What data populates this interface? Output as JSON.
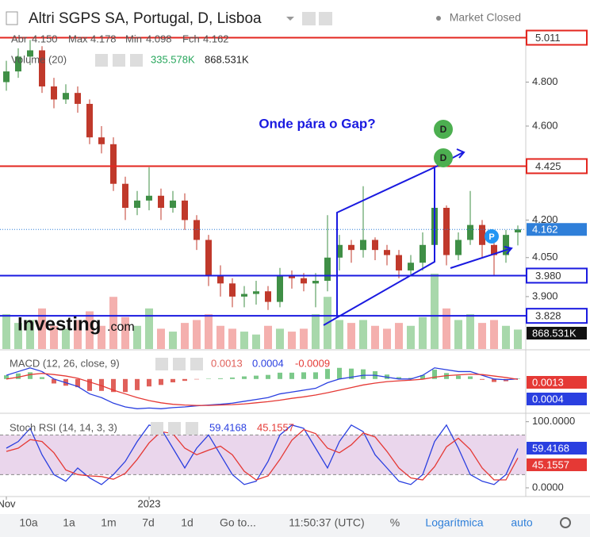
{
  "header": {
    "title": "Altri SGPS SA, Portugal, D, Lisboa",
    "status": "Market Closed"
  },
  "toolbar": {
    "ranges": [
      "10a",
      "1a",
      "1m",
      "7d",
      "1d"
    ],
    "goto": "Go to...",
    "time": "11:50:37 (UTC)",
    "percent": "%",
    "log": "Logarítmica",
    "auto": "auto"
  },
  "logo": {
    "brand": "Investing",
    "suffix": ".com"
  },
  "chart_data": [
    {
      "type": "candlestick",
      "categories": [
        "Nov",
        null,
        null,
        null,
        null,
        null,
        null,
        null,
        null,
        null,
        null,
        null,
        "2023",
        null,
        null,
        null,
        null,
        null,
        null,
        null,
        null,
        null,
        null,
        null,
        null,
        null,
        null,
        null,
        null,
        null,
        null,
        null,
        null,
        null,
        null,
        null,
        null,
        null,
        null,
        null,
        null,
        null,
        null,
        null
      ],
      "open": [
        4.8,
        4.85,
        4.92,
        4.95,
        4.78,
        4.72,
        4.75,
        4.7,
        4.55,
        4.52,
        4.35,
        4.25,
        4.28,
        4.3,
        4.25,
        4.28,
        4.2,
        4.12,
        3.98,
        3.95,
        3.9,
        3.91,
        3.92,
        3.88,
        3.98,
        3.97,
        3.95,
        3.96,
        4.05,
        4.1,
        4.08,
        4.12,
        4.08,
        4.06,
        4.0,
        4.03,
        4.1,
        4.25,
        4.06,
        4.12,
        4.18,
        4.1,
        4.06,
        4.15
      ],
      "high": [
        4.9,
        4.96,
        5.0,
        4.97,
        4.82,
        4.79,
        4.78,
        4.72,
        4.6,
        4.55,
        4.38,
        4.32,
        4.42,
        4.33,
        4.32,
        4.31,
        4.22,
        4.14,
        4.02,
        3.97,
        3.94,
        3.96,
        3.94,
        4.01,
        4.0,
        3.99,
        3.99,
        4.22,
        4.14,
        4.12,
        4.34,
        4.13,
        4.1,
        4.08,
        4.06,
        4.15,
        4.38,
        4.26,
        4.15,
        4.32,
        4.2,
        4.14,
        4.16,
        4.178
      ],
      "low": [
        4.76,
        4.82,
        4.88,
        4.75,
        4.68,
        4.7,
        4.66,
        4.52,
        4.48,
        4.32,
        4.2,
        4.22,
        4.24,
        4.2,
        4.23,
        4.16,
        4.08,
        3.94,
        3.9,
        3.86,
        3.86,
        3.87,
        3.85,
        3.86,
        3.93,
        3.92,
        3.86,
        3.92,
        4.0,
        4.03,
        4.05,
        4.04,
        4.02,
        3.97,
        3.98,
        4.0,
        4.08,
        4.02,
        4.04,
        4.1,
        4.05,
        3.98,
        4.03,
        4.098
      ],
      "close": [
        4.85,
        4.92,
        4.95,
        4.78,
        4.72,
        4.75,
        4.7,
        4.55,
        4.52,
        4.35,
        4.25,
        4.28,
        4.3,
        4.25,
        4.28,
        4.2,
        4.12,
        3.98,
        3.95,
        3.9,
        3.91,
        3.92,
        3.88,
        3.98,
        3.97,
        3.95,
        3.96,
        4.05,
        4.1,
        4.08,
        4.12,
        4.08,
        4.06,
        4.0,
        4.03,
        4.1,
        4.25,
        4.06,
        4.12,
        4.18,
        4.1,
        4.06,
        4.14,
        4.162
      ],
      "up_color": "#3f8f46",
      "down_color": "#c0392b",
      "ohlc_legend": [
        {
          "label": "Abr",
          "value": "4.150"
        },
        {
          "label": "Max",
          "value": "4.178"
        },
        {
          "label": "Min",
          "value": "4.098"
        },
        {
          "label": "Fch",
          "value": "4.162"
        }
      ],
      "volume": {
        "name": "Volume (20)",
        "last": "335.578K",
        "ma": "868.531K",
        "up_color": "#a8d8ab",
        "down_color": "#f4b0ae",
        "values": [
          600,
          450,
          500,
          700,
          400,
          350,
          500,
          650,
          400,
          900,
          550,
          400,
          700,
          350,
          300,
          450,
          500,
          600,
          400,
          350,
          300,
          250,
          400,
          350,
          300,
          350,
          600,
          900,
          500,
          450,
          500,
          400,
          350,
          450,
          400,
          550,
          1300,
          700,
          500,
          600,
          450,
          500,
          400,
          335.578
        ]
      },
      "ylim": [
        3.707,
        5.04
      ],
      "log_scale": true,
      "grid": false,
      "yticks": [
        {
          "value": 3.9,
          "label": "3.900"
        },
        {
          "value": 4.05,
          "label": "4.050"
        },
        {
          "value": 4.2,
          "label": "4.200"
        },
        {
          "value": 4.6,
          "label": "4.600"
        },
        {
          "value": 4.8,
          "label": "4.800"
        }
      ],
      "hlines": [
        {
          "value": 5.011,
          "label": "5.011",
          "color": "#e3261f"
        },
        {
          "value": 4.425,
          "label": "4.425",
          "color": "#e3261f"
        },
        {
          "value": 3.98,
          "label": "3.980",
          "color": "#1a1ae0"
        },
        {
          "value": 3.828,
          "label": "3.828",
          "color": "#1a1ae0"
        }
      ],
      "last_color": "#2f7fd9",
      "annotation": "Onde pára o Gap?",
      "markers": [
        "D",
        "D",
        "P"
      ]
    },
    {
      "type": "macd",
      "title": "MACD (12, 26, close, 9)",
      "ylim": [
        -0.09,
        0.07
      ],
      "series": [
        {
          "name": "histogram",
          "color": "#e0605a",
          "values": [
            0.01,
            0.015,
            0.018,
            0.005,
            -0.012,
            -0.018,
            -0.022,
            -0.032,
            -0.032,
            -0.035,
            -0.035,
            -0.03,
            -0.02,
            -0.016,
            -0.009,
            -0.005,
            -0.001,
            0.001,
            0.002,
            0.004,
            0.007,
            0.009,
            0.011,
            0.017,
            0.017,
            0.018,
            0.018,
            0.027,
            0.03,
            0.028,
            0.026,
            0.021,
            0.012,
            0.005,
            0.003,
            0.0105,
            0.025,
            0.016,
            0.009,
            0.007,
            -0.002,
            -0.008,
            -0.006,
            0.0013
          ]
        },
        {
          "name": "MACD",
          "color": "#2a3fe0",
          "values": [
            0.01,
            0.02,
            0.03,
            0.02,
            0.0,
            -0.01,
            -0.02,
            -0.04,
            -0.05,
            -0.065,
            -0.075,
            -0.08,
            -0.078,
            -0.08,
            -0.077,
            -0.075,
            -0.072,
            -0.07,
            -0.068,
            -0.065,
            -0.06,
            -0.055,
            -0.05,
            -0.04,
            -0.035,
            -0.03,
            -0.025,
            -0.01,
            0.0,
            0.005,
            0.01,
            0.01,
            0.005,
            0.0,
            0.0,
            0.01,
            0.03,
            0.025,
            0.02,
            0.02,
            0.01,
            0.0,
            -0.002,
            0.0004
          ]
        },
        {
          "name": "signal",
          "color": "#e53935",
          "values": [
            0.0,
            0.005,
            0.012,
            0.015,
            0.012,
            0.008,
            0.002,
            -0.008,
            -0.018,
            -0.03,
            -0.04,
            -0.05,
            -0.058,
            -0.064,
            -0.068,
            -0.07,
            -0.071,
            -0.071,
            -0.07,
            -0.069,
            -0.067,
            -0.064,
            -0.061,
            -0.057,
            -0.052,
            -0.048,
            -0.043,
            -0.037,
            -0.03,
            -0.023,
            -0.016,
            -0.011,
            -0.007,
            -0.005,
            -0.003,
            -0.0005,
            0.005,
            0.009,
            0.011,
            0.013,
            0.012,
            0.008,
            0.004,
            -0.0009
          ]
        }
      ]
    },
    {
      "type": "stoch",
      "title": "Stoch RSI (14, 14, 3, 3)",
      "ylim": [
        -12,
        108
      ],
      "band": [
        20,
        80
      ],
      "band_color": "#ead6ec",
      "yticks": [
        {
          "value": 0,
          "label": "0.0000"
        },
        {
          "value": 100,
          "label": "100.0000"
        }
      ],
      "series": [
        {
          "name": "K",
          "color": "#2a3fe0",
          "values": [
            60,
            70,
            90,
            50,
            20,
            10,
            30,
            15,
            5,
            20,
            40,
            70,
            95,
            90,
            60,
            30,
            60,
            80,
            50,
            20,
            5,
            10,
            40,
            80,
            95,
            90,
            60,
            30,
            70,
            95,
            85,
            50,
            30,
            10,
            5,
            20,
            70,
            95,
            60,
            20,
            10,
            5,
            20,
            59.4168
          ]
        },
        {
          "name": "D",
          "color": "#e53935",
          "values": [
            55,
            60,
            73,
            70,
            53,
            27,
            20,
            18,
            17,
            13,
            22,
            43,
            68,
            85,
            82,
            60,
            50,
            57,
            63,
            50,
            25,
            12,
            18,
            43,
            72,
            88,
            82,
            60,
            53,
            65,
            83,
            77,
            55,
            30,
            15,
            12,
            32,
            62,
            75,
            58,
            30,
            12,
            12,
            45.1557
          ]
        }
      ]
    }
  ]
}
